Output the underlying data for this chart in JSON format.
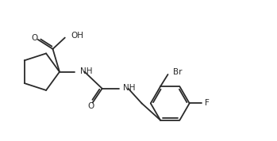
{
  "background_color": "#ffffff",
  "line_color": "#2a2a2a",
  "line_width": 1.3,
  "font_size": 7.5,
  "font_color": "#2a2a2a",
  "figsize": [
    3.49,
    1.78
  ],
  "dpi": 100,
  "xlim": [
    0.0,
    10.0
  ],
  "ylim": [
    0.0,
    5.2
  ]
}
